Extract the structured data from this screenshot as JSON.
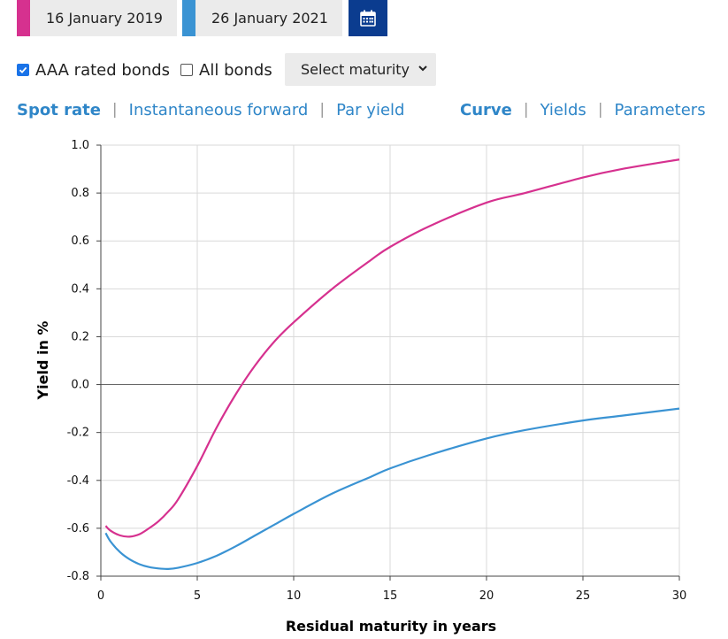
{
  "dates": {
    "date1": {
      "label": "16 January 2019",
      "color": "#d6318f"
    },
    "date2": {
      "label": "26 January 2021",
      "color": "#3a93d3"
    }
  },
  "calendar_icon": "calendar-icon",
  "filters": {
    "aaa_label": "AAA rated bonds",
    "aaa_checked": true,
    "all_label": "All bonds",
    "all_checked": false,
    "maturity_select": "Select maturity"
  },
  "rate_tabs": [
    "Spot rate",
    "Instantaneous forward",
    "Par yield"
  ],
  "rate_tab_active": "Spot rate",
  "view_tabs": [
    "Curve",
    "Yields",
    "Parameters"
  ],
  "view_tab_active": "Curve",
  "separator": "|",
  "chart_data": {
    "type": "line",
    "xlabel": "Residual maturity in years",
    "ylabel": "Yield in %",
    "xlim": [
      0,
      30
    ],
    "ylim": [
      -0.8,
      1.0
    ],
    "xticks": [
      0,
      5,
      10,
      15,
      20,
      25,
      30
    ],
    "yticks": [
      1.0,
      0.8,
      0.6,
      0.4,
      0.2,
      0.0,
      -0.2,
      -0.4,
      -0.6,
      -0.8
    ],
    "grid": true,
    "series": [
      {
        "name": "16 January 2019",
        "color": "#d6318f",
        "x": [
          0.25,
          0.5,
          1,
          1.5,
          2,
          2.5,
          3,
          3.5,
          4,
          5,
          6,
          7,
          8,
          9,
          10,
          12,
          14,
          15,
          17,
          20,
          22,
          25,
          27,
          30
        ],
        "y": [
          -0.59,
          -0.61,
          -0.63,
          -0.635,
          -0.625,
          -0.6,
          -0.57,
          -0.53,
          -0.48,
          -0.34,
          -0.18,
          -0.04,
          0.08,
          0.18,
          0.26,
          0.4,
          0.52,
          0.575,
          0.66,
          0.76,
          0.8,
          0.865,
          0.9,
          0.94
        ]
      },
      {
        "name": "26 January 2021",
        "color": "#3a93d3",
        "x": [
          0.25,
          0.5,
          1,
          1.5,
          2,
          2.5,
          3,
          3.5,
          4,
          5,
          6,
          7,
          8,
          9,
          10,
          12,
          14,
          15,
          17,
          20,
          22,
          25,
          27,
          30
        ],
        "y": [
          -0.62,
          -0.655,
          -0.7,
          -0.73,
          -0.75,
          -0.762,
          -0.768,
          -0.77,
          -0.765,
          -0.745,
          -0.715,
          -0.675,
          -0.63,
          -0.585,
          -0.54,
          -0.455,
          -0.385,
          -0.35,
          -0.295,
          -0.225,
          -0.19,
          -0.15,
          -0.13,
          -0.1
        ]
      }
    ]
  }
}
